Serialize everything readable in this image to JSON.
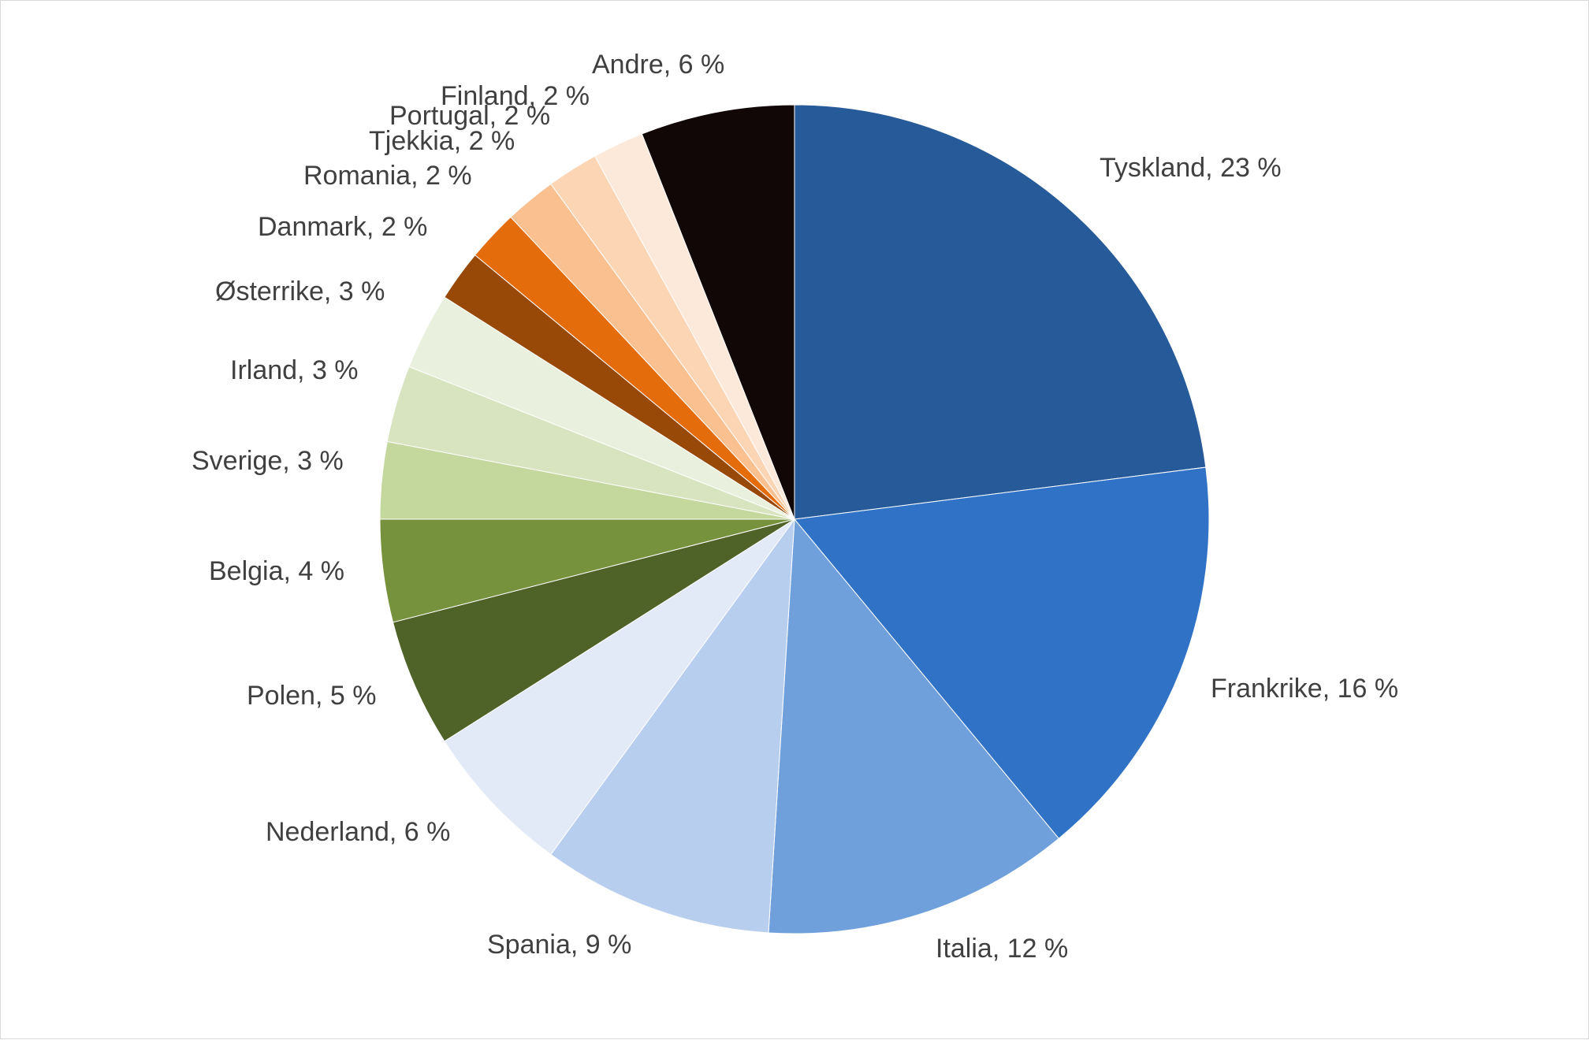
{
  "chart_data": {
    "type": "pie",
    "title": "",
    "legend": "none",
    "slices": [
      {
        "label": "Tyskland, 23 %",
        "category": "Tyskland",
        "value": 23,
        "color": "#275A98"
      },
      {
        "label": "Frankrike, 16 %",
        "category": "Frankrike",
        "value": 16,
        "color": "#3073C6"
      },
      {
        "label": "Italia, 12 %",
        "category": "Italia",
        "value": 12,
        "color": "#6FA0DC"
      },
      {
        "label": "Spania, 9 %",
        "category": "Spania",
        "value": 9,
        "color": "#B8CEEE"
      },
      {
        "label": "Nederland, 6 %",
        "category": "Nederland",
        "value": 6,
        "color": "#E2E9F7"
      },
      {
        "label": "Polen, 5 %",
        "category": "Polen",
        "value": 5,
        "color": "#4F6328"
      },
      {
        "label": "Belgia, 4 %",
        "category": "Belgia",
        "value": 4,
        "color": "#77923C"
      },
      {
        "label": "Sverige, 3 %",
        "category": "Sverige",
        "value": 3,
        "color": "#C4D89E"
      },
      {
        "label": "Irland, 3 %",
        "category": "Irland",
        "value": 3,
        "color": "#D8E4BF"
      },
      {
        "label": "Østerrike, 3 %",
        "category": "Østerrike",
        "value": 3,
        "color": "#EAF0DE"
      },
      {
        "label": "Danmark, 2 %",
        "category": "Danmark",
        "value": 2,
        "color": "#984807"
      },
      {
        "label": "Romania, 2 %",
        "category": "Romania",
        "value": 2,
        "color": "#E46C0A"
      },
      {
        "label": "Tjekkia, 2 %",
        "category": "Tjekkia",
        "value": 2,
        "color": "#FAC090"
      },
      {
        "label": "Portugal, 2 %",
        "category": "Portugal",
        "value": 2,
        "color": "#FCD5B5"
      },
      {
        "label": "Finland, 2 %",
        "category": "Finland",
        "value": 2,
        "color": "#FDE9D9"
      },
      {
        "label": "Andre, 6 %",
        "category": "Andre",
        "value": 6,
        "color": "#120707"
      }
    ]
  }
}
